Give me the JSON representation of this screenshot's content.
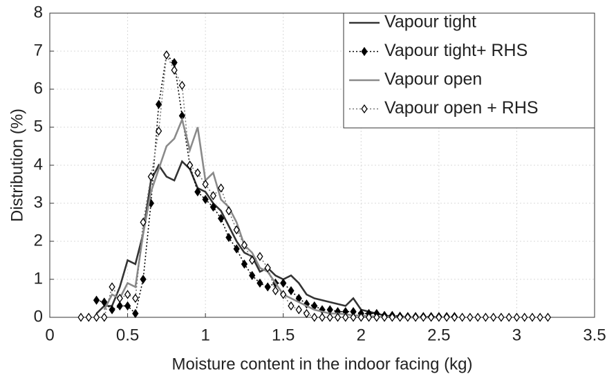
{
  "chart_data": {
    "type": "line",
    "xlabel": "Moisture content in the indoor facing (kg)",
    "ylabel": "Distribution (%)",
    "x": [
      0.2,
      0.25,
      0.3,
      0.35,
      0.4,
      0.45,
      0.5,
      0.55,
      0.6,
      0.65,
      0.7,
      0.75,
      0.8,
      0.85,
      0.9,
      0.95,
      1.0,
      1.05,
      1.1,
      1.15,
      1.2,
      1.25,
      1.3,
      1.35,
      1.4,
      1.45,
      1.5,
      1.55,
      1.6,
      1.65,
      1.7,
      1.75,
      1.8,
      1.85,
      1.9,
      1.95,
      2.0,
      2.05,
      2.1,
      2.15,
      2.2,
      2.25,
      2.3,
      2.35,
      2.4,
      2.45,
      2.5,
      2.55,
      2.6,
      2.65,
      2.7,
      2.75,
      2.8,
      2.85,
      2.9,
      2.95,
      3.0,
      3.05,
      3.1,
      3.15,
      3.2
    ],
    "series": [
      {
        "name": "Vapour tight",
        "color": "#333333",
        "linestyle": "solid",
        "marker": "none",
        "values": [
          null,
          null,
          0.1,
          0.3,
          0.3,
          0.8,
          1.5,
          1.4,
          2.2,
          3.6,
          4.0,
          3.7,
          3.6,
          4.1,
          3.9,
          3.4,
          3.3,
          3.0,
          2.8,
          2.4,
          2.0,
          1.7,
          1.6,
          1.2,
          1.3,
          1.1,
          1.0,
          1.1,
          0.9,
          0.6,
          0.5,
          0.45,
          0.4,
          0.35,
          0.3,
          0.5,
          0.2,
          0.15,
          0.1,
          0.05,
          0.02,
          0,
          0,
          0,
          0,
          0,
          0,
          null,
          null,
          null,
          null,
          null,
          null,
          null,
          null,
          null,
          null,
          null,
          null,
          null,
          null
        ]
      },
      {
        "name": "Vapour tight+ RHS",
        "color": "#000000",
        "linestyle": "dotted",
        "marker": "filled-diamond",
        "values": [
          null,
          null,
          0.45,
          0.4,
          0.2,
          0.3,
          0.3,
          0.1,
          1.0,
          3.0,
          5.6,
          6.9,
          6.7,
          5.3,
          4.0,
          3.3,
          3.1,
          2.9,
          2.6,
          2.1,
          1.8,
          1.4,
          1.1,
          0.9,
          0.8,
          0.9,
          0.9,
          0.7,
          0.5,
          0.35,
          0.3,
          0.2,
          0.2,
          0.15,
          0.15,
          0.15,
          0.1,
          0.1,
          0.1,
          0.05,
          0.05,
          0.03,
          0.02,
          0.02,
          0.02,
          0.02,
          0.02,
          0.02,
          0.02,
          null,
          null,
          null,
          null,
          null,
          null,
          null,
          null,
          null,
          null,
          null,
          null
        ]
      },
      {
        "name": "Vapour open",
        "color": "#8a8a8a",
        "linestyle": "solid",
        "marker": "none",
        "values": [
          null,
          null,
          null,
          0.2,
          0.6,
          0.5,
          0.9,
          0.8,
          2.2,
          3.3,
          3.9,
          4.5,
          4.7,
          5.2,
          4.4,
          5.0,
          3.6,
          3.8,
          3.1,
          2.9,
          2.5,
          1.9,
          1.7,
          1.3,
          1.2,
          0.9,
          0.6,
          0.5,
          0.4,
          0.3,
          0.2,
          0.15,
          0.1,
          0.1,
          0.08,
          0.05,
          0.05,
          0.03,
          0.02,
          0.01,
          0,
          0,
          0,
          0,
          0,
          0,
          0,
          null,
          null,
          null,
          null,
          null,
          null,
          null,
          null,
          null,
          null,
          null,
          null,
          null,
          null
        ]
      },
      {
        "name": "Vapour open + RHS",
        "color": "#777777",
        "linestyle": "dotted",
        "marker": "open-diamond",
        "values": [
          0,
          0,
          0,
          0,
          0.8,
          0.5,
          0.6,
          0.5,
          2.5,
          3.7,
          4.9,
          6.9,
          6.5,
          6.1,
          4.0,
          3.8,
          3.5,
          3.2,
          3.4,
          2.8,
          2.3,
          1.9,
          1.5,
          1.6,
          1.3,
          0.7,
          0.6,
          0.3,
          0.2,
          0.1,
          0,
          0,
          0,
          0,
          0,
          0,
          0,
          0,
          0,
          0,
          0,
          0,
          0,
          0,
          0,
          0,
          0,
          0,
          0,
          0,
          0,
          0,
          0,
          0,
          0,
          0,
          0,
          0,
          0,
          0,
          0
        ]
      }
    ],
    "xlim": [
      0,
      3.5
    ],
    "xticks": [
      0,
      0.5,
      1,
      1.5,
      2,
      2.5,
      3,
      3.5
    ],
    "ylim": [
      0,
      8
    ],
    "yticks": [
      0,
      1,
      2,
      3,
      4,
      5,
      6,
      7,
      8
    ],
    "grid": true,
    "legend": "upper right"
  }
}
